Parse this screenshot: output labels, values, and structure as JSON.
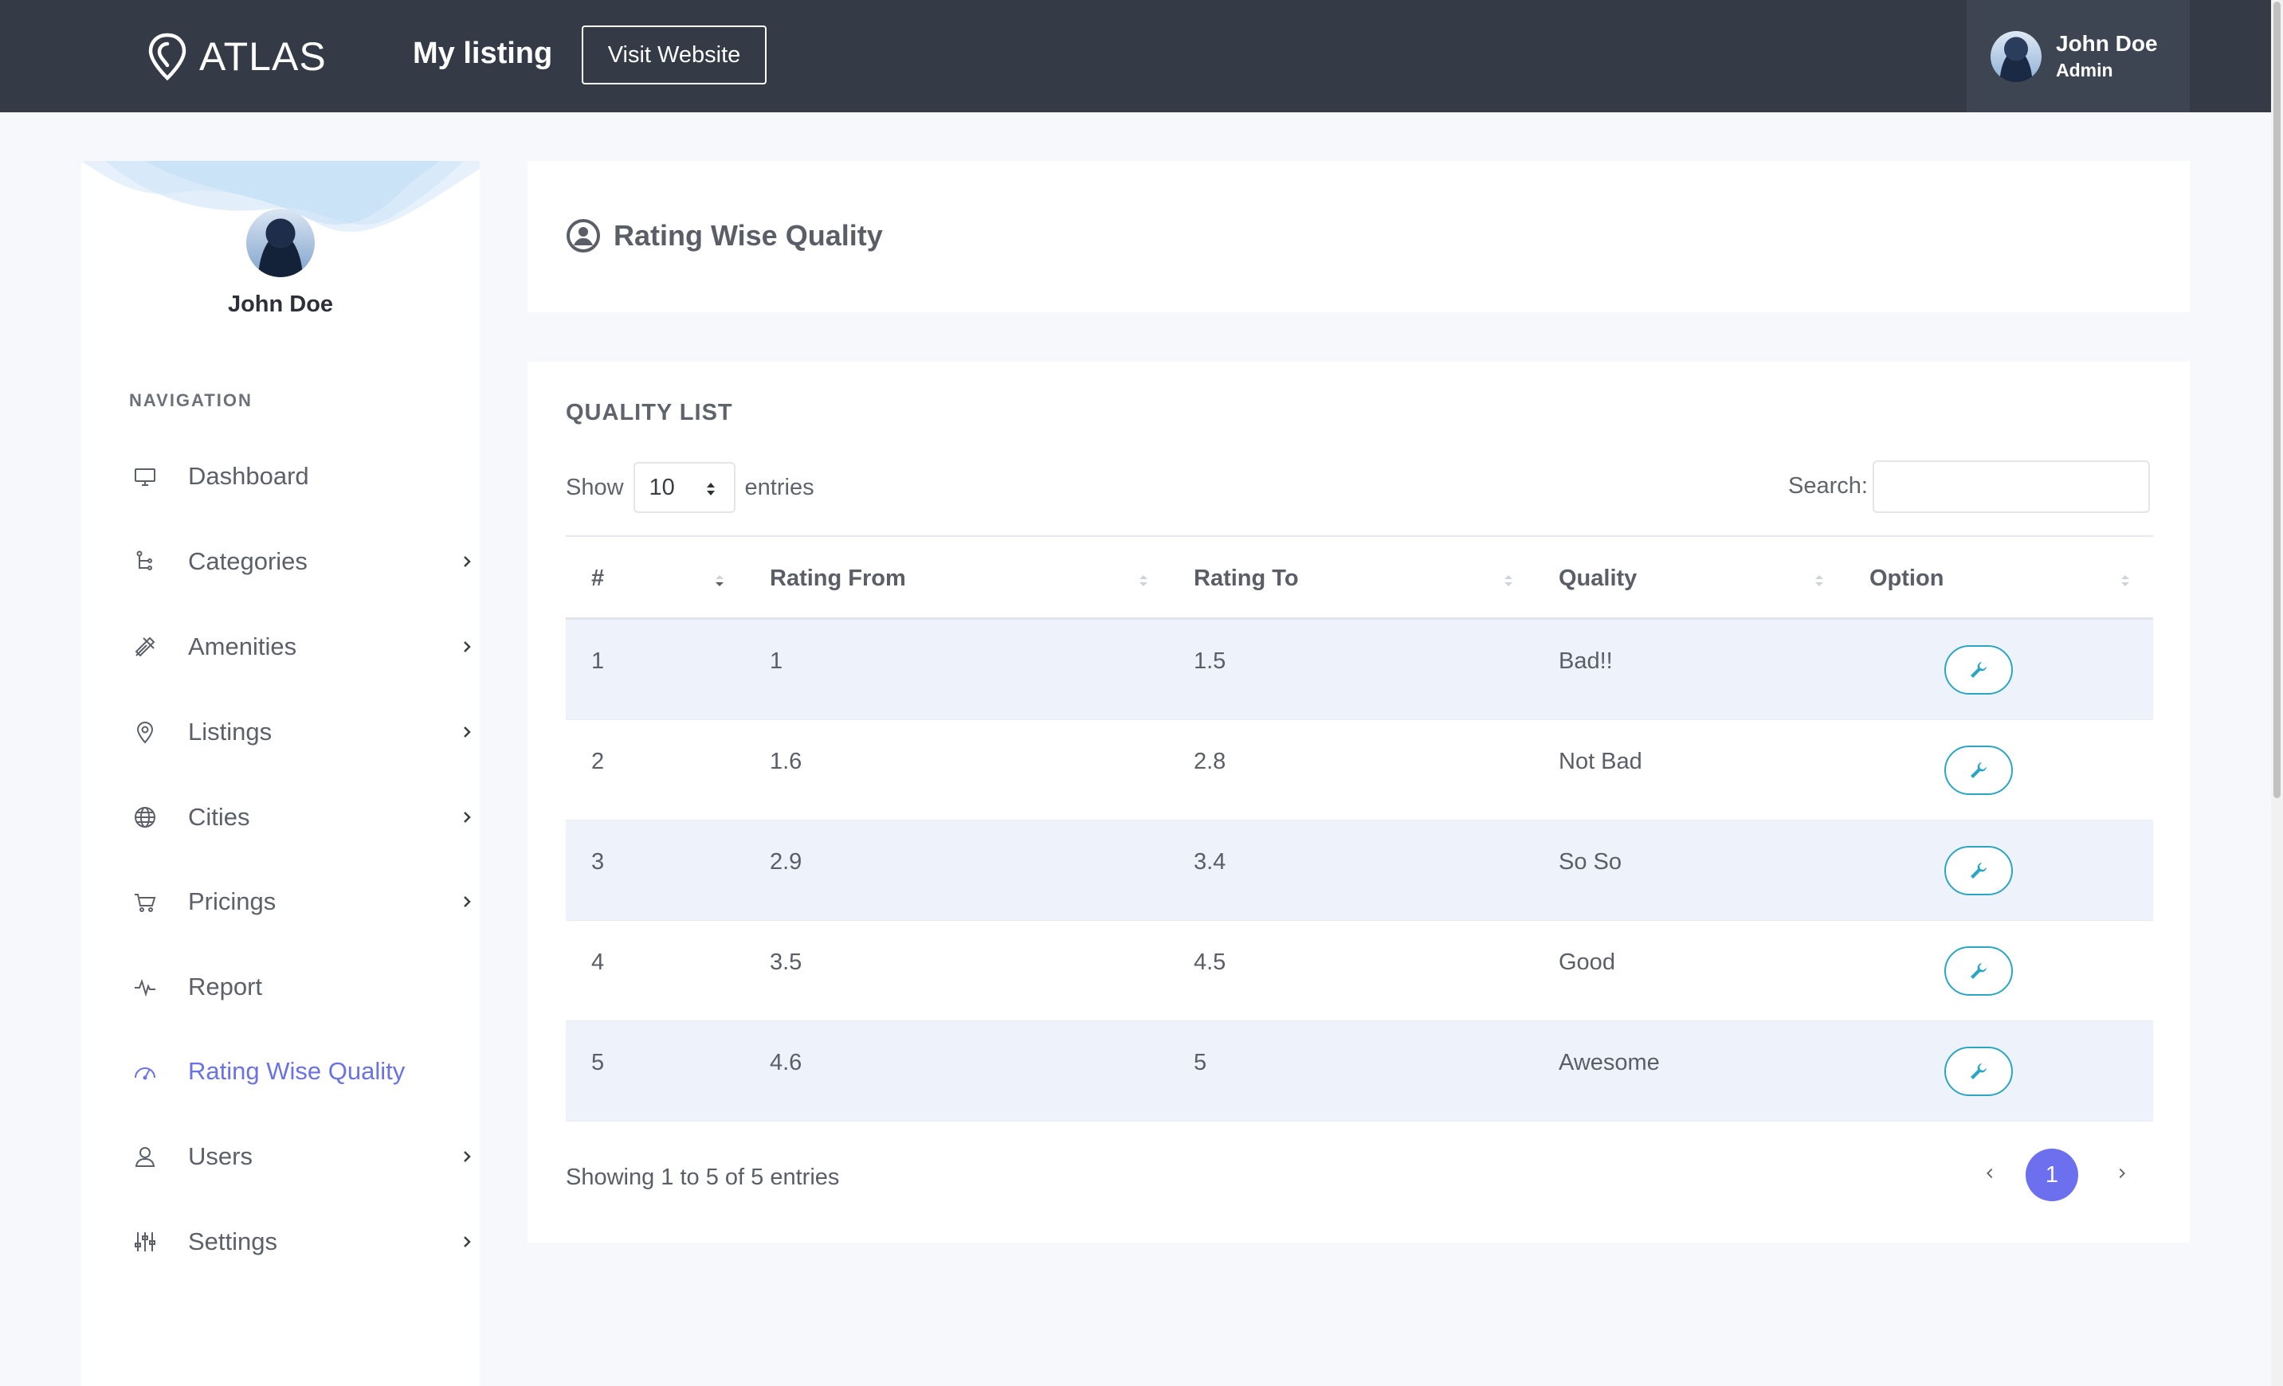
{
  "topbar": {
    "brand": "ATLAS",
    "title": "My listing",
    "visit_label": "Visit Website",
    "user_name": "John Doe",
    "user_role": "Admin"
  },
  "sidebar": {
    "profile_name": "John Doe",
    "nav_label": "NAVIGATION",
    "items": [
      {
        "label": "Dashboard",
        "icon": "monitor-icon",
        "has_submenu": false
      },
      {
        "label": "Categories",
        "icon": "hierarchy-icon",
        "has_submenu": true
      },
      {
        "label": "Amenities",
        "icon": "tools-icon",
        "has_submenu": true
      },
      {
        "label": "Listings",
        "icon": "map-pin-icon",
        "has_submenu": true
      },
      {
        "label": "Cities",
        "icon": "globe-icon",
        "has_submenu": true
      },
      {
        "label": "Pricings",
        "icon": "cart-icon",
        "has_submenu": true
      },
      {
        "label": "Report",
        "icon": "pulse-icon",
        "has_submenu": false
      },
      {
        "label": "Rating Wise Quality",
        "icon": "gauge-icon",
        "has_submenu": false,
        "active": true
      },
      {
        "label": "Users",
        "icon": "user-icon",
        "has_submenu": true
      },
      {
        "label": "Settings",
        "icon": "sliders-icon",
        "has_submenu": true
      }
    ]
  },
  "header": {
    "title": "Rating Wise Quality"
  },
  "list": {
    "title": "QUALITY LIST",
    "show_label": "Show",
    "page_size": "10",
    "entries_label": "entries",
    "search_label": "Search:",
    "search_value": "",
    "columns": [
      "#",
      "Rating From",
      "Rating To",
      "Quality",
      "Option"
    ],
    "rows": [
      {
        "num": "1",
        "from": "1",
        "to": "1.5",
        "quality": "Bad!!"
      },
      {
        "num": "2",
        "from": "1.6",
        "to": "2.8",
        "quality": "Not Bad"
      },
      {
        "num": "3",
        "from": "2.9",
        "to": "3.4",
        "quality": "So So"
      },
      {
        "num": "4",
        "from": "3.5",
        "to": "4.5",
        "quality": "Good"
      },
      {
        "num": "5",
        "from": "4.6",
        "to": "5",
        "quality": "Awesome"
      }
    ],
    "info": "Showing 1 to 5 of 5 entries",
    "current_page": "1"
  },
  "colors": {
    "topbar": "#343a46",
    "accent": "#6c70ee",
    "option_button": "#2aa6c4",
    "row_stripe": "#eef2fb"
  }
}
